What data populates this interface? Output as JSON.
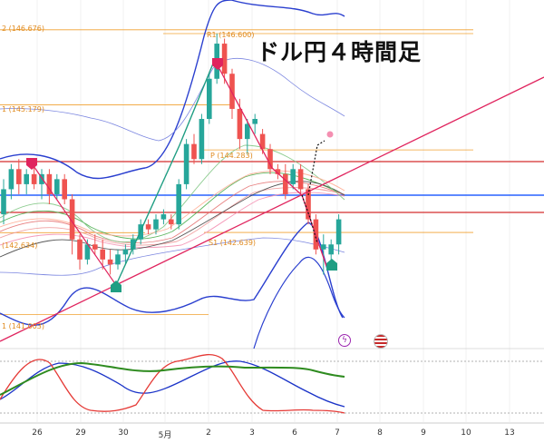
{
  "title": "ドル円４時間足",
  "levels": [
    {
      "label": "2 (146.676)",
      "price": 146.676
    },
    {
      "label": "R1 (146.600)",
      "price": 146.6
    },
    {
      "label": "1 (145.179)",
      "price": 145.179
    },
    {
      "label": "P (144.283)",
      "price": 144.283
    },
    {
      "label": "(142.634)",
      "price": 142.634
    },
    {
      "label": "S1 (142.639)",
      "price": 142.639
    },
    {
      "label": "1 (141.003)",
      "price": 141.003
    }
  ],
  "x_ticks": [
    "26",
    "29",
    "30",
    "5月",
    "2",
    "3",
    "6",
    "7",
    "8",
    "9",
    "10",
    "13"
  ],
  "colors": {
    "up": "#26a69a",
    "down": "#ef5350",
    "bollinger": "#2a3fcf",
    "trend": "#e0245e",
    "level": "#f0a030",
    "red_line": "#d32f2f",
    "blue_line": "#2962ff"
  },
  "chart_data": {
    "type": "candlestick",
    "title": "ドル円４時間足",
    "price_range": [
      140.6,
      147.6
    ],
    "series": [
      {
        "name": "candles",
        "values": [
          [
            0,
            143.0,
            143.7,
            142.8,
            143.5
          ],
          [
            1,
            143.5,
            144.0,
            143.3,
            143.9
          ],
          [
            2,
            143.9,
            144.1,
            143.4,
            143.6
          ],
          [
            3,
            143.6,
            143.9,
            143.4,
            143.8
          ],
          [
            4,
            143.8,
            144.1,
            143.5,
            143.6
          ],
          [
            5,
            143.6,
            143.9,
            143.3,
            143.8
          ],
          [
            6,
            143.8,
            143.9,
            143.2,
            143.4
          ],
          [
            7,
            143.4,
            143.8,
            143.3,
            143.7
          ],
          [
            8,
            143.7,
            143.8,
            143.2,
            143.3
          ],
          [
            9,
            143.3,
            143.4,
            142.2,
            142.5
          ],
          [
            10,
            142.5,
            142.6,
            141.9,
            142.1
          ],
          [
            11,
            142.1,
            142.5,
            142.0,
            142.4
          ],
          [
            12,
            142.4,
            142.6,
            142.2,
            142.3
          ],
          [
            13,
            142.3,
            142.5,
            141.9,
            142.1
          ],
          [
            14,
            142.1,
            142.3,
            141.8,
            142.0
          ],
          [
            15,
            142.0,
            142.3,
            141.9,
            142.2
          ],
          [
            16,
            142.2,
            142.4,
            142.0,
            142.3
          ],
          [
            17,
            142.3,
            142.6,
            142.2,
            142.5
          ],
          [
            18,
            142.5,
            142.9,
            142.4,
            142.8
          ],
          [
            19,
            142.8,
            142.9,
            142.6,
            142.7
          ],
          [
            20,
            142.7,
            143.0,
            142.6,
            142.9
          ],
          [
            21,
            142.9,
            143.1,
            142.8,
            143.0
          ],
          [
            22,
            142.9,
            143.0,
            142.7,
            142.8
          ],
          [
            23,
            142.8,
            143.7,
            142.7,
            143.6
          ],
          [
            24,
            143.6,
            144.5,
            143.5,
            144.4
          ],
          [
            25,
            144.4,
            144.6,
            144.0,
            144.1
          ],
          [
            26,
            144.1,
            145.0,
            144.0,
            144.9
          ],
          [
            27,
            144.9,
            145.8,
            144.8,
            145.7
          ],
          [
            28,
            145.7,
            146.6,
            145.6,
            146.4
          ],
          [
            29,
            146.4,
            146.5,
            145.6,
            145.8
          ],
          [
            30,
            145.8,
            145.9,
            144.9,
            145.1
          ],
          [
            31,
            145.1,
            145.3,
            144.3,
            144.5
          ],
          [
            32,
            144.5,
            144.9,
            144.2,
            144.8
          ],
          [
            33,
            144.8,
            145.0,
            144.6,
            144.9
          ],
          [
            34,
            144.6,
            144.7,
            144.2,
            144.3
          ],
          [
            35,
            144.3,
            144.4,
            143.8,
            143.9
          ],
          [
            36,
            143.9,
            144.0,
            143.7,
            143.8
          ],
          [
            37,
            143.8,
            144.0,
            143.3,
            143.4
          ],
          [
            38,
            143.6,
            144.0,
            143.5,
            143.9
          ],
          [
            39,
            143.9,
            144.0,
            143.4,
            143.5
          ],
          [
            40,
            143.5,
            143.6,
            142.8,
            142.9
          ],
          [
            41,
            142.9,
            143.0,
            142.2,
            142.3
          ],
          [
            42,
            142.3,
            142.6,
            141.8,
            142.4
          ],
          [
            43,
            142.2,
            142.5,
            142.0,
            142.4
          ],
          [
            44,
            142.4,
            143.0,
            142.2,
            142.9
          ]
        ]
      }
    ]
  }
}
